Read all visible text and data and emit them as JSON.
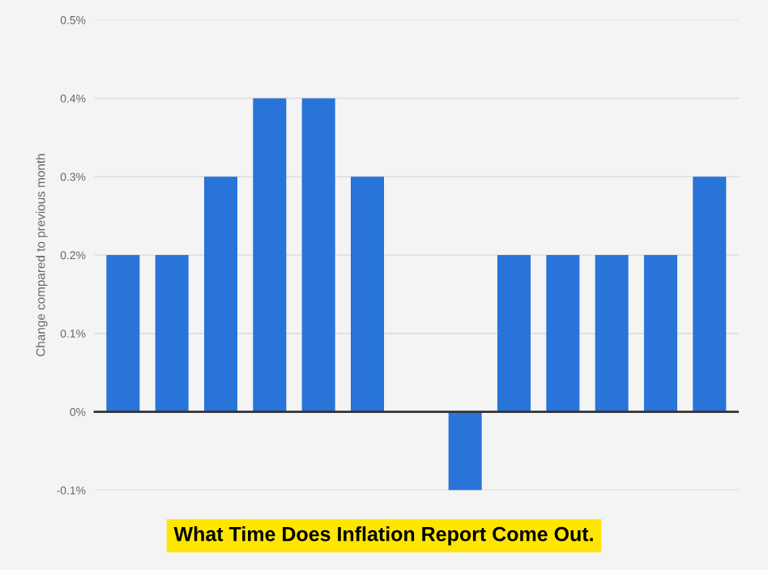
{
  "chart_data": {
    "type": "bar",
    "title": "What Time Does Inflation Report Come Out.",
    "ylabel": "Change compared to previous month",
    "categories": [
      null,
      null,
      null,
      null,
      null,
      null,
      null,
      null,
      null,
      null,
      null,
      null,
      null
    ],
    "values": [
      0.2,
      0.2,
      0.3,
      0.4,
      0.4,
      0.3,
      0,
      -0.1,
      0.2,
      0.2,
      0.2,
      0.2,
      0.3
    ],
    "color": "#2874d8",
    "ylim": [
      -0.1,
      0.5
    ],
    "yticks": [
      {
        "value": -0.1,
        "label": "-0.1%"
      },
      {
        "value": 0,
        "label": "0%"
      },
      {
        "value": 0.1,
        "label": "0.1%"
      },
      {
        "value": 0.2,
        "label": "0.2%"
      },
      {
        "value": 0.3,
        "label": "0.3%"
      },
      {
        "value": 0.4,
        "label": "0.4%"
      },
      {
        "value": 0.5,
        "label": "0.5%"
      }
    ],
    "grid": "y"
  }
}
